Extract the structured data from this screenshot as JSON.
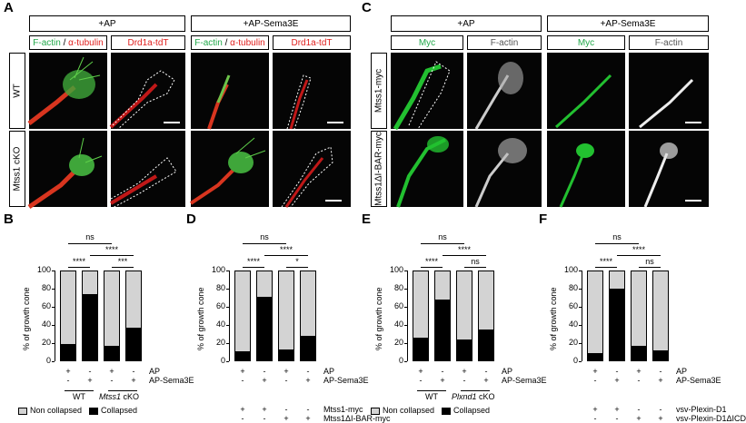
{
  "panels": {
    "A": "A",
    "B": "B",
    "C": "C",
    "D": "D",
    "E": "E",
    "F": "F"
  },
  "panelA": {
    "headers": [
      "+AP",
      "+AP-Sema3E"
    ],
    "sub_factin": "F-actin",
    "sub_sep": " / ",
    "sub_tubulin": "α-tubulin",
    "sub_drd1": "Drd1a-tdT",
    "rows": [
      "WT",
      "Mtss1 cKO"
    ]
  },
  "panelC": {
    "headers": [
      "+AP",
      "+AP-Sema3E"
    ],
    "sub_myc": "Myc",
    "sub_factin": "F-actin",
    "rows": [
      "Mtss1-myc",
      "Mtss1ΔI-BAR-myc"
    ]
  },
  "colors": {
    "collapsed": "#000000",
    "non_collapsed": "#d3d3d3",
    "green": "#22a84a",
    "red": "#e0201e"
  },
  "chart_data": [
    {
      "type": "bar",
      "panel": "B",
      "ylabel": "% of growth cone",
      "ylim": [
        0,
        100
      ],
      "yticks": [
        "0",
        "20",
        "40",
        "60",
        "80",
        "100"
      ],
      "series": [
        {
          "name": "Collapsed",
          "values": [
            19,
            74,
            17,
            37
          ]
        },
        {
          "name": "Non collapsed",
          "values": [
            81,
            26,
            83,
            63
          ]
        }
      ],
      "rows": [
        {
          "label": "AP",
          "signs": [
            "+",
            "-",
            "+",
            "-"
          ]
        },
        {
          "label": "AP-Sema3E",
          "signs": [
            "-",
            "+",
            "-",
            "+"
          ]
        }
      ],
      "groups": [
        "WT",
        "Mtss1 cKO"
      ],
      "sig": {
        "top": "ns",
        "mid": "****",
        "left": "****",
        "right": "***"
      },
      "legend": [
        "Non collapsed",
        "Collapsed"
      ]
    },
    {
      "type": "bar",
      "panel": "D",
      "ylabel": "% of growth cone",
      "ylim": [
        0,
        100
      ],
      "yticks": [
        "0",
        "20",
        "40",
        "60",
        "80",
        "100"
      ],
      "series": [
        {
          "name": "Collapsed",
          "values": [
            11,
            71,
            13,
            28
          ]
        },
        {
          "name": "Non collapsed",
          "values": [
            89,
            29,
            87,
            72
          ]
        }
      ],
      "rows": [
        {
          "label": "AP",
          "signs": [
            "+",
            "-",
            "+",
            "-"
          ]
        },
        {
          "label": "AP-Sema3E",
          "signs": [
            "-",
            "+",
            "-",
            "+"
          ]
        },
        {
          "label": "Mtss1-myc",
          "signs": [
            "+",
            "+",
            "-",
            "-"
          ]
        },
        {
          "label": "Mtss1ΔI-BAR-myc",
          "signs": [
            "-",
            "-",
            "+",
            "+"
          ]
        }
      ],
      "sig": {
        "top": "ns",
        "mid": "****",
        "left": "****",
        "right": "*"
      }
    },
    {
      "type": "bar",
      "panel": "E",
      "ylabel": "% of growth cone",
      "ylim": [
        0,
        100
      ],
      "yticks": [
        "0",
        "20",
        "40",
        "60",
        "80",
        "100"
      ],
      "series": [
        {
          "name": "Collapsed",
          "values": [
            26,
            68,
            24,
            35
          ]
        },
        {
          "name": "Non collapsed",
          "values": [
            74,
            32,
            76,
            65
          ]
        }
      ],
      "rows": [
        {
          "label": "AP",
          "signs": [
            "+",
            "-",
            "+",
            "-"
          ]
        },
        {
          "label": "AP-Sema3E",
          "signs": [
            "-",
            "+",
            "-",
            "+"
          ]
        }
      ],
      "groups": [
        "WT",
        "Plxnd1 cKO"
      ],
      "sig": {
        "top": "ns",
        "mid": "****",
        "left": "****",
        "right": "ns"
      },
      "legend": [
        "Non collapsed",
        "Collapsed"
      ]
    },
    {
      "type": "bar",
      "panel": "F",
      "ylabel": "% of growth cone",
      "ylim": [
        0,
        100
      ],
      "yticks": [
        "0",
        "20",
        "40",
        "60",
        "80",
        "100"
      ],
      "series": [
        {
          "name": "Collapsed",
          "values": [
            9,
            80,
            17,
            12
          ]
        },
        {
          "name": "Non collapsed",
          "values": [
            91,
            20,
            83,
            88
          ]
        }
      ],
      "rows": [
        {
          "label": "AP",
          "signs": [
            "+",
            "-",
            "+",
            "-"
          ]
        },
        {
          "label": "AP-Sema3E",
          "signs": [
            "-",
            "+",
            "-",
            "+"
          ]
        },
        {
          "label": "vsv-Plexin-D1",
          "signs": [
            "+",
            "+",
            "-",
            "-"
          ]
        },
        {
          "label": "vsv-Plexin-D1ΔICD",
          "signs": [
            "-",
            "-",
            "+",
            "+"
          ]
        }
      ],
      "sig": {
        "top": "ns",
        "mid": "****",
        "left": "****",
        "right": "ns"
      }
    }
  ]
}
